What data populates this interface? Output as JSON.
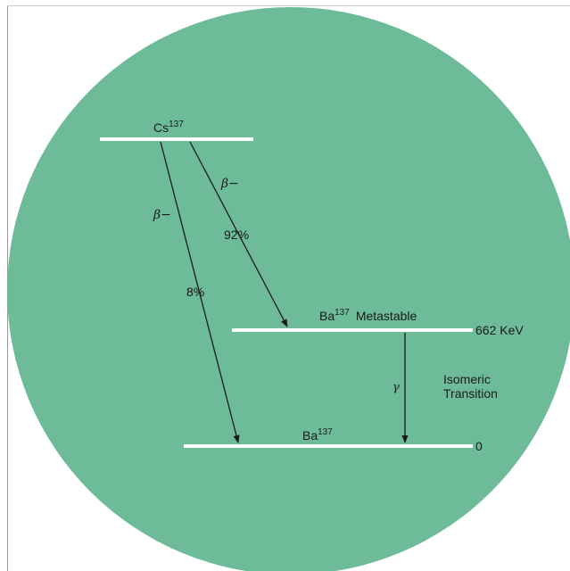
{
  "colors": {
    "disc": "#6dbb98",
    "level_line": "#ffffff",
    "arrow": "#1a1a1a",
    "text": "#1a1a1a",
    "frame": "#9a9a9a"
  },
  "levels": {
    "cs": {
      "label": "Cs",
      "superscript": "137"
    },
    "ba_metastable": {
      "label": "Ba",
      "superscript": "137",
      "suffix": "Metastable",
      "energy": "662 KeV"
    },
    "ba_ground": {
      "label": "Ba",
      "superscript": "137",
      "energy": "0"
    }
  },
  "transitions": {
    "beta_major": {
      "symbol": "β−",
      "percent": "92%"
    },
    "beta_minor": {
      "symbol": "β−",
      "percent": "8%"
    },
    "gamma": {
      "symbol": "γ",
      "label_line1": "Isomeric",
      "label_line2": "Transition"
    }
  }
}
